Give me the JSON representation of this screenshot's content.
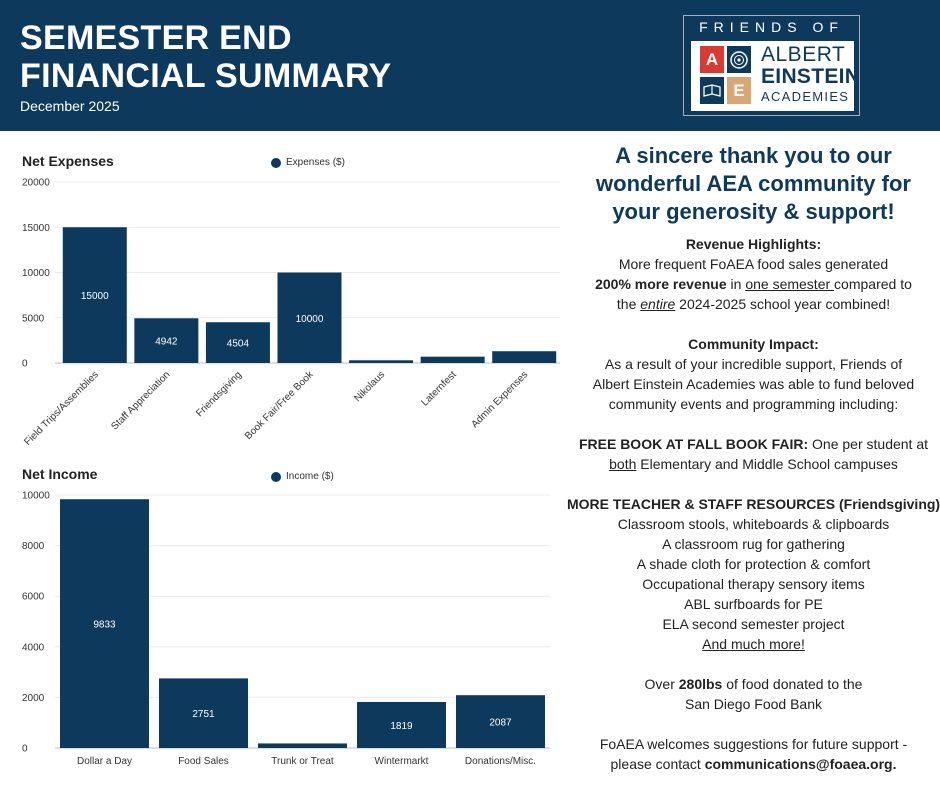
{
  "header": {
    "title_line1": "SEMESTER END",
    "title_line2": "FINANCIAL SUMMARY",
    "date": "December 2025",
    "logo": {
      "top_text": "FRIENDS OF",
      "tile_a": "A",
      "tile_e": "E",
      "word1": "ALBERT",
      "word2": "EINSTEIN",
      "word3": "ACADEMIES"
    }
  },
  "colors": {
    "navy": "#0d3a5c",
    "red": "#d93a33",
    "tan": "#d9a773"
  },
  "chart_data": [
    {
      "type": "bar",
      "title": "Net Expenses",
      "legend": "Expenses ($)",
      "categories": [
        "Field Trips/Assemblies",
        "Staff Appreciation",
        "Friendsgiving",
        "Book Fair/Free Book",
        "Nikolaus",
        "Laternfest",
        "Admin Expenses"
      ],
      "values": [
        15000,
        4942,
        4504,
        10000,
        300,
        700,
        1300
      ],
      "data_labels": [
        "15000",
        "4942",
        "4504",
        "10000",
        "",
        "",
        ""
      ],
      "yticks": [
        0,
        5000,
        10000,
        15000,
        20000
      ],
      "ylim": [
        0,
        20000
      ]
    },
    {
      "type": "bar",
      "title": "Net Income",
      "legend": "Income ($)",
      "categories": [
        "Dollar a Day",
        "Food Sales",
        "Trunk or Treat",
        "Wintermarkt",
        "Donations/Misc."
      ],
      "values": [
        9833,
        2751,
        180,
        1819,
        2087
      ],
      "data_labels": [
        "9833",
        "2751",
        "",
        "1819",
        "2087"
      ],
      "yticks": [
        0,
        2000,
        4000,
        6000,
        8000,
        10000
      ],
      "ylim": [
        0,
        10000
      ]
    }
  ],
  "right": {
    "thanks": [
      "A sincere thank you to our",
      "wonderful AEA community for",
      "your generosity & support!"
    ],
    "revenue": {
      "heading": "Revenue Highlights:",
      "line1": "More frequent FoAEA food sales generated",
      "l2_bold": "200% more revenue",
      "l2_mid": " in ",
      "l2_under": "one semester ",
      "l2_end": "compared to",
      "l3_start": "the ",
      "l3_italic": "entire",
      "l3_end": " 2024-2025 school year combined!"
    },
    "community": {
      "heading": "Community Impact:",
      "lines": [
        "As a result of your incredible support, Friends of",
        "Albert Einstein Academies was able to fund beloved",
        "community events and programming including:"
      ]
    },
    "free_book": {
      "bold": "FREE BOOK AT FALL BOOK FAIR:",
      "rest": " One per student at",
      "l2_under": "both",
      "l2_rest": " Elementary and Middle School campuses"
    },
    "teacher": {
      "heading": "MORE TEACHER & STAFF RESOURCES (Friendsgiving):",
      "items": [
        "Classroom stools, whiteboards & clipboards",
        "A classroom rug for gathering",
        "A shade cloth for protection & comfort",
        "Occupational therapy sensory items",
        "ABL surfboards for PE",
        "ELA second semester project"
      ],
      "more": "And much more!"
    },
    "food": {
      "pre": "Over ",
      "bold": "280lbs",
      "post": " of food donated to the",
      "line2": "San Diego Food Bank"
    },
    "contact": {
      "line1": "FoAEA welcomes suggestions for future support -",
      "pre": "please contact ",
      "email": "communications@foaea.org."
    }
  }
}
